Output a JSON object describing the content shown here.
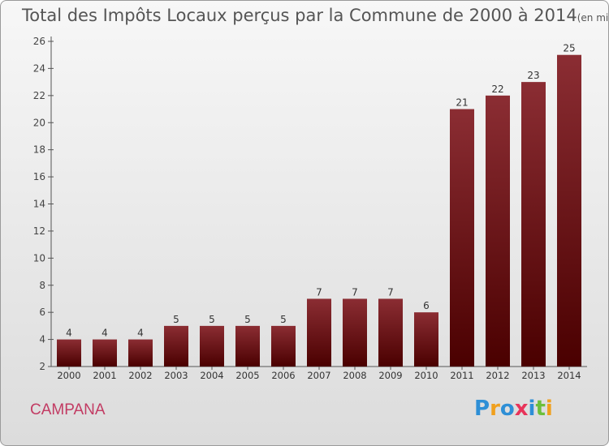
{
  "title": {
    "main": "Total des Impôts Locaux perçus par la Commune de 2000 à 2014",
    "unit": "(en milliers d'€)"
  },
  "commune": "CAMPANA",
  "logo": {
    "letters": [
      "P",
      "r",
      "o",
      "x",
      "i",
      "t",
      "i"
    ],
    "colors": [
      "#2e8fd6",
      "#f0a01e",
      "#2e8fd6",
      "#e8345a",
      "#2e8fd6",
      "#6cbf3a",
      "#f0a01e"
    ]
  },
  "colors": {
    "bar_top": "#8b2d33",
    "bar_bottom": "#4a0000",
    "commune": "#c23b63"
  },
  "chart_data": {
    "type": "bar",
    "categories": [
      "2000",
      "2001",
      "2002",
      "2003",
      "2004",
      "2005",
      "2006",
      "2007",
      "2008",
      "2009",
      "2010",
      "2011",
      "2012",
      "2013",
      "2014"
    ],
    "values": [
      4,
      4,
      4,
      5,
      5,
      5,
      5,
      7,
      7,
      7,
      6,
      21,
      22,
      23,
      25
    ],
    "ylim": [
      2,
      26
    ],
    "yticks": [
      2,
      4,
      6,
      8,
      10,
      12,
      14,
      16,
      18,
      20,
      22,
      24,
      26
    ],
    "grid": false,
    "data_labels": true
  }
}
